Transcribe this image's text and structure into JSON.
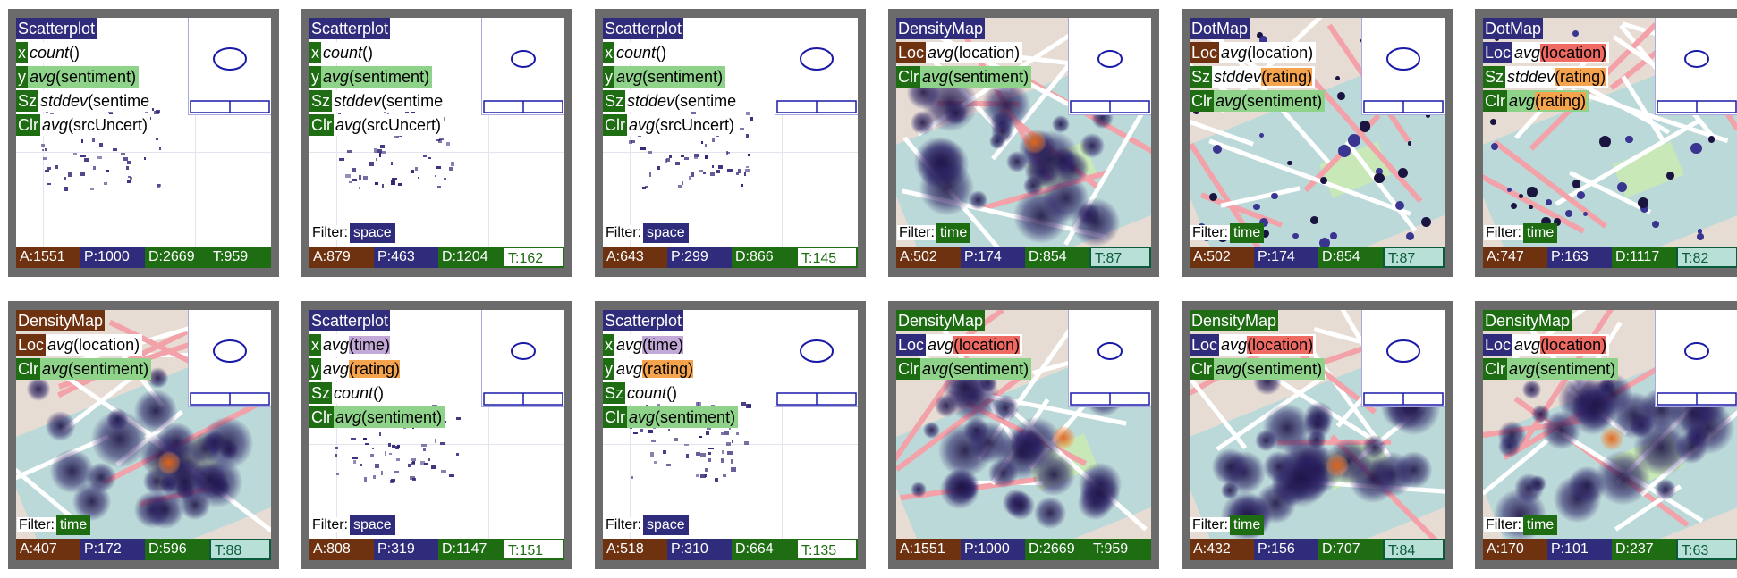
{
  "filter_label": "Filter:",
  "panels": [
    {
      "title": "Scatterplot",
      "title_style": "navy",
      "view": "plot",
      "encodings": [
        {
          "ch": "x",
          "ch_style": "green",
          "ex_bg": "white",
          "agg": "count",
          "fld": "()",
          "fld_style": "none"
        },
        {
          "ch": "y",
          "ch_style": "green",
          "ex_bg": "green",
          "agg": "avg",
          "fld": "(sentiment)",
          "fld_style": "none"
        },
        {
          "ch": "Sz",
          "ch_style": "green",
          "ex_bg": "white",
          "agg": "stddev",
          "fld": "(sentime",
          "fld_style": "none"
        },
        {
          "ch": "Clr",
          "ch_style": "green",
          "ex_bg": "white",
          "agg": "avg",
          "fld": "(srcUncert)",
          "fld_style": "none"
        }
      ],
      "filter": "",
      "filter_style": "",
      "stats": {
        "a": "A:1551",
        "p": "P:1000",
        "d": "D:2669",
        "t": "T:959",
        "t_style": "strong"
      }
    },
    {
      "title": "Scatterplot",
      "title_style": "navy",
      "view": "plot",
      "encodings": [
        {
          "ch": "x",
          "ch_style": "green",
          "ex_bg": "white",
          "agg": "count",
          "fld": "()",
          "fld_style": "none"
        },
        {
          "ch": "y",
          "ch_style": "green",
          "ex_bg": "green",
          "agg": "avg",
          "fld": "(sentiment)",
          "fld_style": "none"
        },
        {
          "ch": "Sz",
          "ch_style": "green",
          "ex_bg": "white",
          "agg": "stddev",
          "fld": "(sentime",
          "fld_style": "none"
        },
        {
          "ch": "Clr",
          "ch_style": "green",
          "ex_bg": "white",
          "agg": "avg",
          "fld": "(srcUncert)",
          "fld_style": "none"
        }
      ],
      "filter": "space",
      "filter_style": "space",
      "stats": {
        "a": "A:879",
        "p": "P:463",
        "d": "D:1204",
        "t": "T:162",
        "t_style": "light"
      }
    },
    {
      "title": "Scatterplot",
      "title_style": "navy",
      "view": "plot",
      "encodings": [
        {
          "ch": "x",
          "ch_style": "green",
          "ex_bg": "white",
          "agg": "count",
          "fld": "()",
          "fld_style": "none"
        },
        {
          "ch": "y",
          "ch_style": "green",
          "ex_bg": "green",
          "agg": "avg",
          "fld": "(sentiment)",
          "fld_style": "none"
        },
        {
          "ch": "Sz",
          "ch_style": "green",
          "ex_bg": "white",
          "agg": "stddev",
          "fld": "(sentime",
          "fld_style": "none"
        },
        {
          "ch": "Clr",
          "ch_style": "green",
          "ex_bg": "white",
          "agg": "avg",
          "fld": "(srcUncert)",
          "fld_style": "none"
        }
      ],
      "filter": "space",
      "filter_style": "space",
      "stats": {
        "a": "A:643",
        "p": "P:299",
        "d": "D:866",
        "t": "T:145",
        "t_style": "light"
      }
    },
    {
      "title": "DensityMap",
      "title_style": "navy",
      "view": "density",
      "encodings": [
        {
          "ch": "Loc",
          "ch_style": "brown",
          "ex_bg": "white",
          "agg": "avg",
          "fld": "(location)",
          "fld_style": "none"
        },
        {
          "ch": "Clr",
          "ch_style": "green",
          "ex_bg": "green",
          "agg": "avg",
          "fld": "(sentiment)",
          "fld_style": "none"
        }
      ],
      "filter": "time",
      "filter_style": "time",
      "stats": {
        "a": "A:502",
        "p": "P:174",
        "d": "D:854",
        "t": "T:87",
        "t_style": "mid"
      }
    },
    {
      "title": "DotMap",
      "title_style": "navy",
      "view": "dot",
      "encodings": [
        {
          "ch": "Loc",
          "ch_style": "brown",
          "ex_bg": "white",
          "agg": "avg",
          "fld": "(location)",
          "fld_style": "none"
        },
        {
          "ch": "Sz",
          "ch_style": "green",
          "ex_bg": "white",
          "agg": "stddev",
          "fld": "(rating)",
          "fld_style": "orange"
        },
        {
          "ch": "Clr",
          "ch_style": "green",
          "ex_bg": "green",
          "agg": "avg",
          "fld": "(sentiment)",
          "fld_style": "none"
        }
      ],
      "filter": "time",
      "filter_style": "time",
      "stats": {
        "a": "A:502",
        "p": "P:174",
        "d": "D:854",
        "t": "T:87",
        "t_style": "mid"
      }
    },
    {
      "title": "DotMap",
      "title_style": "navy",
      "view": "dot",
      "encodings": [
        {
          "ch": "Loc",
          "ch_style": "navy",
          "ex_bg": "white",
          "agg": "avg",
          "fld": "(location)",
          "fld_style": "red"
        },
        {
          "ch": "Sz",
          "ch_style": "green",
          "ex_bg": "white",
          "agg": "stddev",
          "fld": "(rating)",
          "fld_style": "orange"
        },
        {
          "ch": "Clr",
          "ch_style": "green",
          "ex_bg": "green",
          "agg": "avg",
          "fld": "(rating)",
          "fld_style": "orange"
        }
      ],
      "filter": "time",
      "filter_style": "time",
      "stats": {
        "a": "A:747",
        "p": "P:163",
        "d": "D:1117",
        "t": "T:82",
        "t_style": "mid"
      }
    },
    {
      "title": "DensityMap",
      "title_style": "brown",
      "view": "density",
      "encodings": [
        {
          "ch": "Loc",
          "ch_style": "brown",
          "ex_bg": "white",
          "agg": "avg",
          "fld": "(location)",
          "fld_style": "none"
        },
        {
          "ch": "Clr",
          "ch_style": "green",
          "ex_bg": "green",
          "agg": "avg",
          "fld": "(sentiment)",
          "fld_style": "none"
        }
      ],
      "filter": "time",
      "filter_style": "time",
      "stats": {
        "a": "A:407",
        "p": "P:172",
        "d": "D:596",
        "t": "T:88",
        "t_style": "mid"
      }
    },
    {
      "title": "Scatterplot",
      "title_style": "navy",
      "view": "plot",
      "encodings": [
        {
          "ch": "x",
          "ch_style": "green",
          "ex_bg": "white",
          "agg": "avg",
          "fld": "(time)",
          "fld_style": "lav"
        },
        {
          "ch": "y",
          "ch_style": "green",
          "ex_bg": "white",
          "agg": "avg",
          "fld": "(rating)",
          "fld_style": "orange"
        },
        {
          "ch": "Sz",
          "ch_style": "green",
          "ex_bg": "white",
          "agg": "count",
          "fld": "()",
          "fld_style": "none"
        },
        {
          "ch": "Clr",
          "ch_style": "green",
          "ex_bg": "green",
          "agg": "avg",
          "fld": "(sentiment)",
          "fld_style": "none"
        }
      ],
      "filter": "space",
      "filter_style": "space",
      "stats": {
        "a": "A:808",
        "p": "P:319",
        "d": "D:1147",
        "t": "T:151",
        "t_style": "light"
      }
    },
    {
      "title": "Scatterplot",
      "title_style": "navy",
      "view": "plot",
      "encodings": [
        {
          "ch": "x",
          "ch_style": "green",
          "ex_bg": "white",
          "agg": "avg",
          "fld": "(time)",
          "fld_style": "lav"
        },
        {
          "ch": "y",
          "ch_style": "green",
          "ex_bg": "white",
          "agg": "avg",
          "fld": "(rating)",
          "fld_style": "orange"
        },
        {
          "ch": "Sz",
          "ch_style": "green",
          "ex_bg": "white",
          "agg": "count",
          "fld": "()",
          "fld_style": "none"
        },
        {
          "ch": "Clr",
          "ch_style": "green",
          "ex_bg": "green",
          "agg": "avg",
          "fld": "(sentiment)",
          "fld_style": "none"
        }
      ],
      "filter": "space",
      "filter_style": "space",
      "stats": {
        "a": "A:518",
        "p": "P:310",
        "d": "D:664",
        "t": "T:135",
        "t_style": "light"
      }
    },
    {
      "title": "DensityMap",
      "title_style": "green",
      "view": "density",
      "encodings": [
        {
          "ch": "Loc",
          "ch_style": "navy",
          "ex_bg": "white",
          "agg": "avg",
          "fld": "(location)",
          "fld_style": "red"
        },
        {
          "ch": "Clr",
          "ch_style": "green",
          "ex_bg": "green",
          "agg": "avg",
          "fld": "(sentiment)",
          "fld_style": "none"
        }
      ],
      "filter": "",
      "filter_style": "",
      "stats": {
        "a": "A:1551",
        "p": "P:1000",
        "d": "D:2669",
        "t": "T:959",
        "t_style": "strong"
      }
    },
    {
      "title": "DensityMap",
      "title_style": "green",
      "view": "density",
      "encodings": [
        {
          "ch": "Loc",
          "ch_style": "navy",
          "ex_bg": "white",
          "agg": "avg",
          "fld": "(location)",
          "fld_style": "red"
        },
        {
          "ch": "Clr",
          "ch_style": "green",
          "ex_bg": "green",
          "agg": "avg",
          "fld": "(sentiment)",
          "fld_style": "none"
        }
      ],
      "filter": "time",
      "filter_style": "time",
      "stats": {
        "a": "A:432",
        "p": "P:156",
        "d": "D:707",
        "t": "T:84",
        "t_style": "mid"
      }
    },
    {
      "title": "DensityMap",
      "title_style": "green",
      "view": "density",
      "encodings": [
        {
          "ch": "Loc",
          "ch_style": "navy",
          "ex_bg": "white",
          "agg": "avg",
          "fld": "(location)",
          "fld_style": "red"
        },
        {
          "ch": "Clr",
          "ch_style": "green",
          "ex_bg": "green",
          "agg": "avg",
          "fld": "(sentiment)",
          "fld_style": "none"
        }
      ],
      "filter": "time",
      "filter_style": "time",
      "stats": {
        "a": "A:170",
        "p": "P:101",
        "d": "D:237",
        "t": "T:63",
        "t_style": "mid"
      }
    }
  ]
}
